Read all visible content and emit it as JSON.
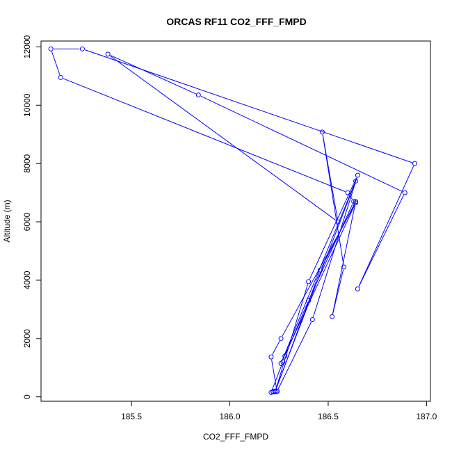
{
  "chart_data": {
    "type": "line",
    "title": "ORCAS RF11 CO2_FFF_FMPD",
    "xlabel": "CO2_FFF_FMPD",
    "ylabel": "Altitude (m)",
    "xlim": [
      185.04,
      187.02
    ],
    "ylim": [
      -150,
      12200
    ],
    "x_ticks": [
      185.5,
      186.0,
      186.5,
      187.0
    ],
    "x_tick_labels": [
      "185.5",
      "186.0",
      "186.5",
      "187.0"
    ],
    "y_ticks": [
      0,
      2000,
      4000,
      6000,
      8000,
      10000,
      12000
    ],
    "y_tick_labels": [
      "0",
      "2000",
      "4000",
      "6000",
      "8000",
      "10000",
      "12000"
    ],
    "grid": false,
    "legend": "none",
    "colors": {
      "series": "#0000ff",
      "axis": "#000000"
    },
    "series": [
      {
        "points": [
          {
            "x": 186.22,
            "y": 170
          },
          {
            "x": 186.23,
            "y": 180
          },
          {
            "x": 186.24,
            "y": 190
          },
          {
            "x": 186.22,
            "y": 180
          },
          {
            "x": 186.23,
            "y": 175
          },
          {
            "x": 186.24,
            "y": 185
          },
          {
            "x": 186.21,
            "y": 150
          },
          {
            "x": 186.27,
            "y": 1200
          },
          {
            "x": 186.28,
            "y": 1400
          },
          {
            "x": 186.4,
            "y": 3300
          },
          {
            "x": 186.63,
            "y": 6700
          },
          {
            "x": 186.6,
            "y": 7000
          },
          {
            "x": 185.14,
            "y": 10950
          },
          {
            "x": 185.09,
            "y": 11930
          },
          {
            "x": 185.25,
            "y": 11930
          },
          {
            "x": 186.94,
            "y": 8000
          },
          {
            "x": 186.65,
            "y": 3700
          },
          {
            "x": 186.89,
            "y": 7000
          },
          {
            "x": 185.84,
            "y": 10350
          },
          {
            "x": 185.38,
            "y": 11750
          },
          {
            "x": 186.55,
            "y": 6000
          },
          {
            "x": 186.47,
            "y": 9080
          },
          {
            "x": 186.58,
            "y": 4450
          },
          {
            "x": 186.52,
            "y": 2750
          },
          {
            "x": 186.64,
            "y": 6700
          },
          {
            "x": 186.46,
            "y": 4350
          },
          {
            "x": 186.23,
            "y": 170
          },
          {
            "x": 186.4,
            "y": 3950
          },
          {
            "x": 186.65,
            "y": 7600
          },
          {
            "x": 186.42,
            "y": 2650
          },
          {
            "x": 186.24,
            "y": 190
          },
          {
            "x": 186.21,
            "y": 1370
          },
          {
            "x": 186.26,
            "y": 2000
          },
          {
            "x": 186.64,
            "y": 6650
          },
          {
            "x": 186.26,
            "y": 1150
          },
          {
            "x": 186.64,
            "y": 7400
          },
          {
            "x": 186.23,
            "y": 200
          }
        ]
      }
    ]
  }
}
